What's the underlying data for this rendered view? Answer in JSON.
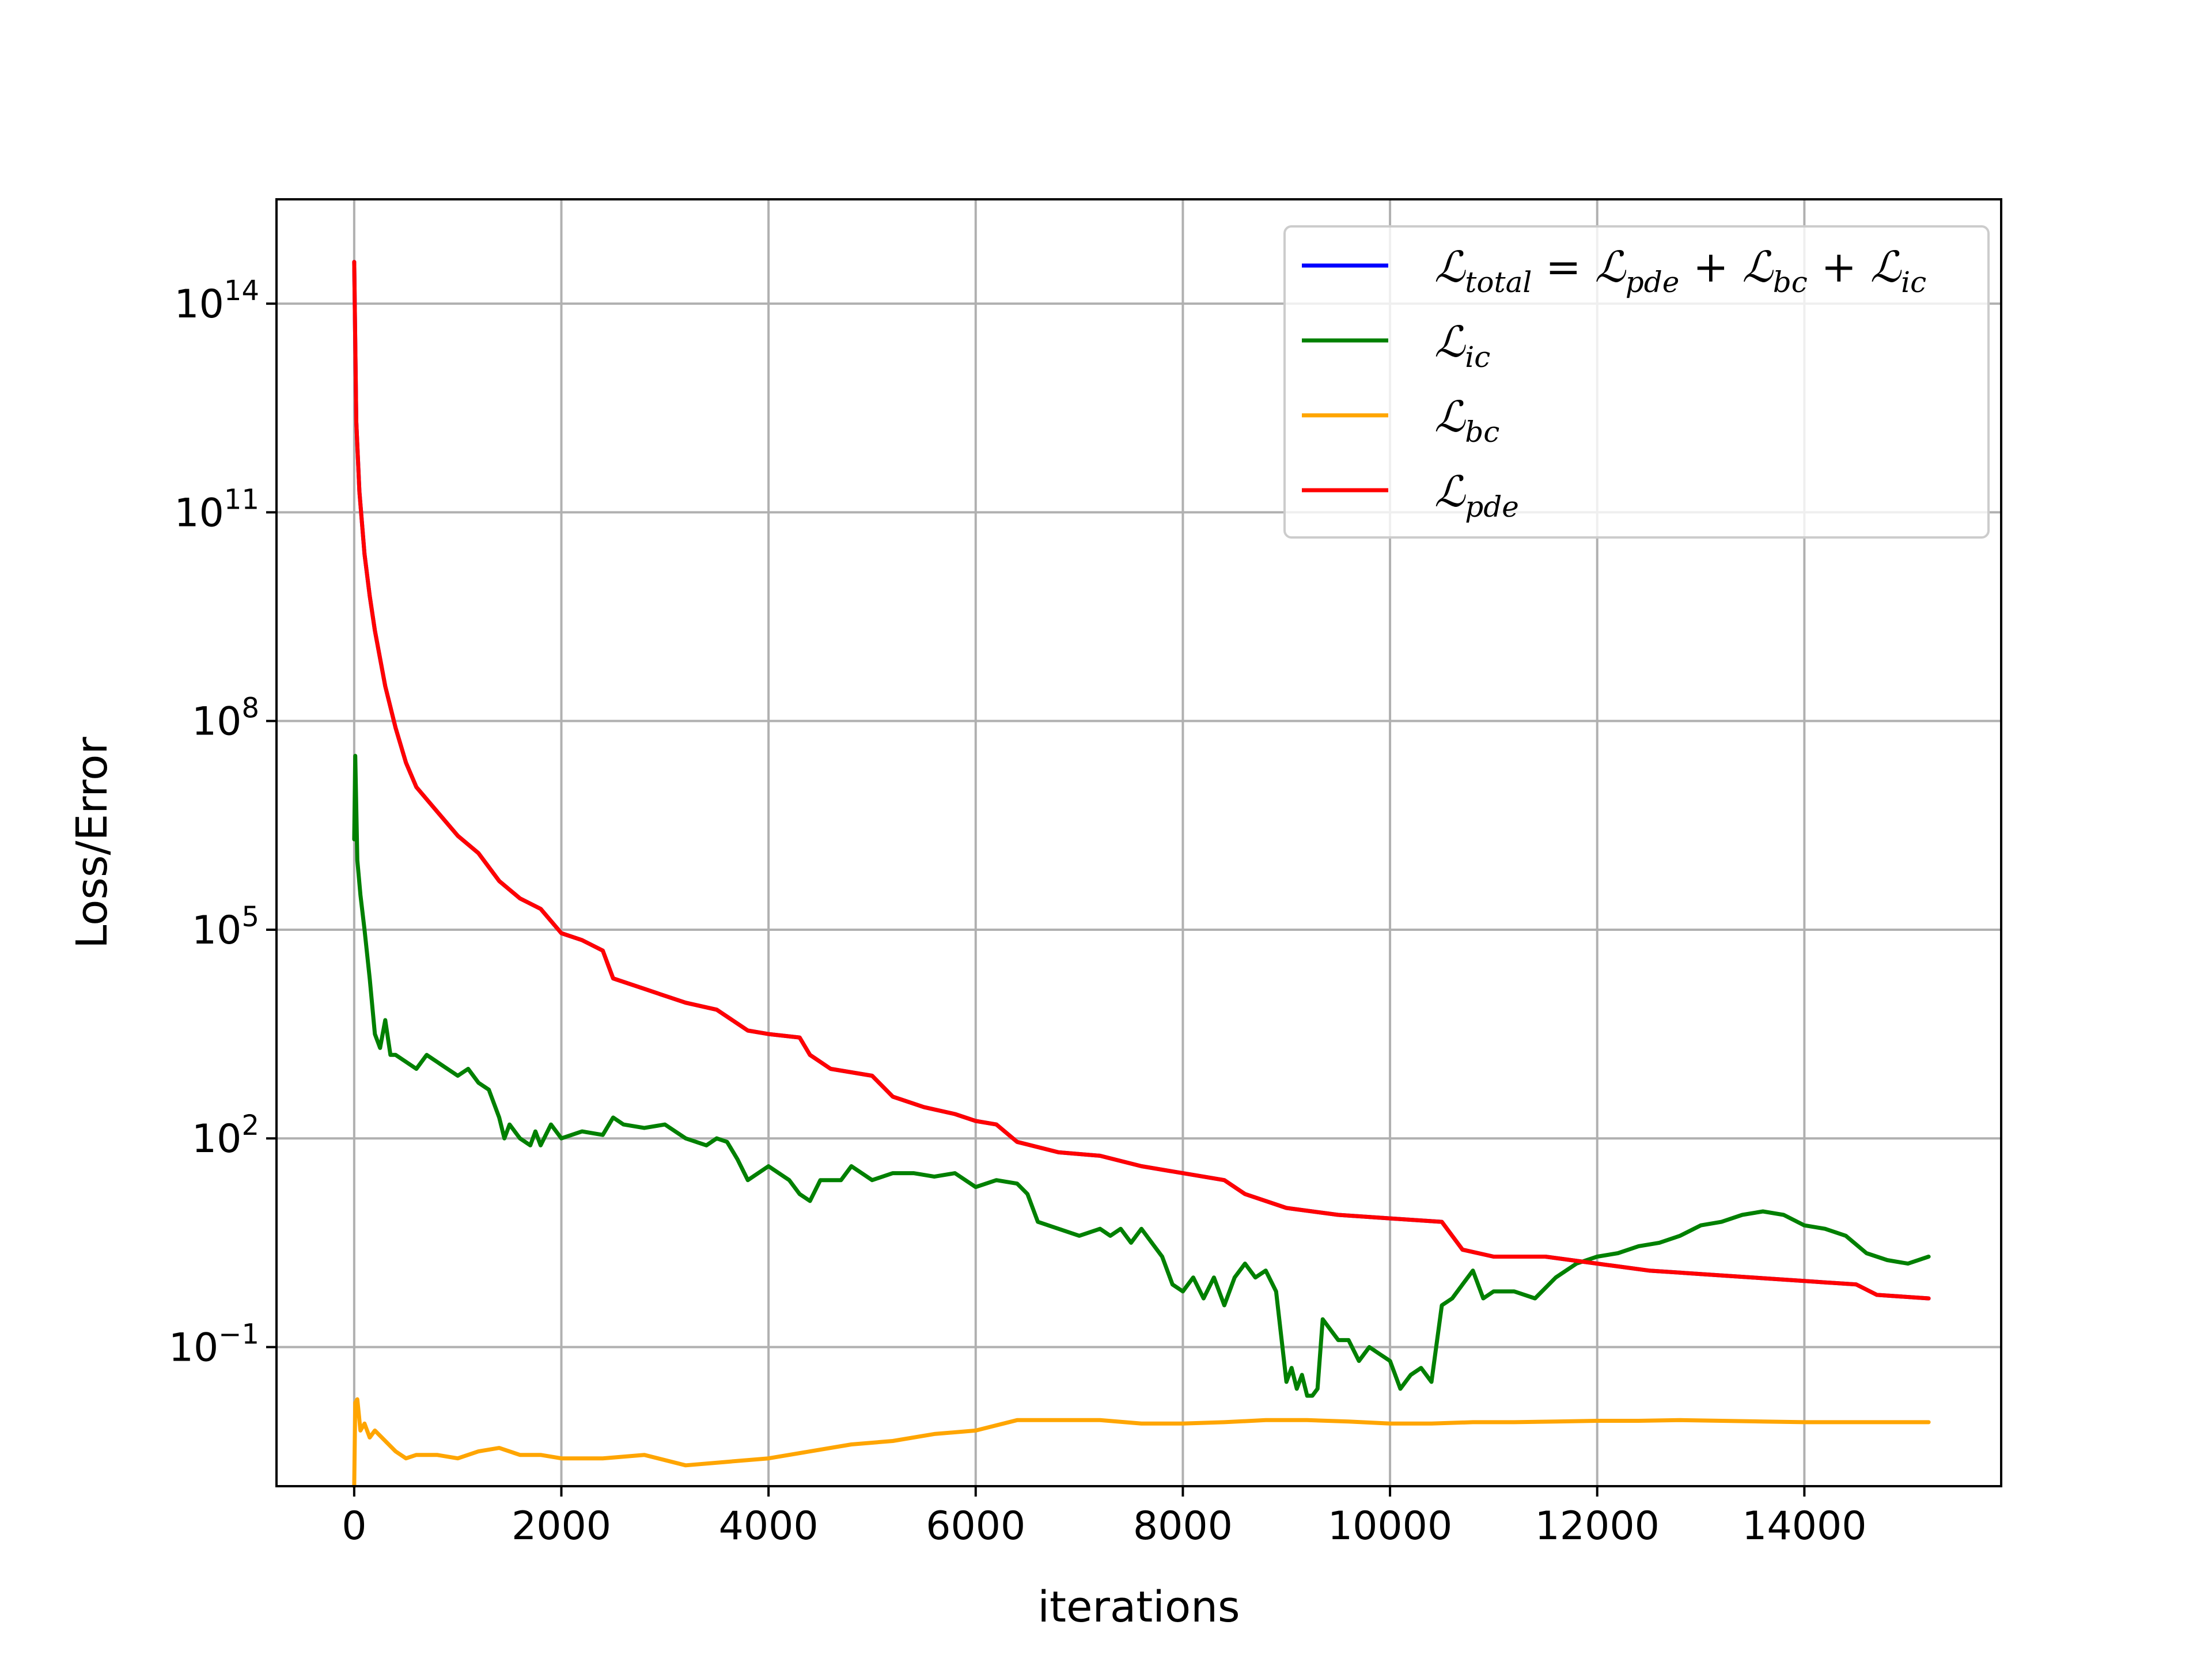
{
  "chart_data": {
    "type": "line",
    "title": "",
    "xlabel": "iterations",
    "ylabel": "Loss/Error",
    "yscale": "log",
    "xlim": [
      -750,
      15900
    ],
    "ylim_log10": [
      -3,
      15.5
    ],
    "grid": true,
    "legend_position": "top-right",
    "x_ticks": [
      0,
      2000,
      4000,
      6000,
      8000,
      10000,
      12000,
      14000
    ],
    "x_tick_labels": [
      "0",
      "2000",
      "4000",
      "6000",
      "8000",
      "10000",
      "12000",
      "14000"
    ],
    "y_ticks_log10": [
      -1,
      2,
      5,
      8,
      11,
      14
    ],
    "y_tick_labels": [
      {
        "base": "10",
        "exp": "−1"
      },
      {
        "base": "10",
        "exp": "2"
      },
      {
        "base": "10",
        "exp": "5"
      },
      {
        "base": "10",
        "exp": "8"
      },
      {
        "base": "10",
        "exp": "11"
      },
      {
        "base": "10",
        "exp": "14"
      }
    ],
    "series": [
      {
        "name": "ℒtotal = ℒpde + ℒbc + ℒic",
        "legend": [
          [
            "ℒ",
            ""
          ],
          [
            "total",
            "sub"
          ],
          [
            " = ℒ",
            ""
          ],
          [
            "pde",
            "sub"
          ],
          [
            " + ℒ",
            ""
          ],
          [
            "bc",
            "sub"
          ],
          [
            " + ℒ",
            ""
          ],
          [
            "ic",
            "sub"
          ]
        ],
        "color": "#0000ff",
        "x": [
          0,
          20,
          50,
          100,
          150,
          200,
          300,
          400,
          500,
          600,
          800,
          1000,
          1200,
          1400,
          1600,
          1800,
          2000,
          2200,
          2400,
          2500,
          2800,
          3000,
          3200,
          3500,
          3800,
          4000,
          4300,
          4400,
          4600,
          5000,
          5200,
          5500,
          5800,
          6000,
          6200,
          6400,
          6800,
          7200,
          7600,
          8000,
          8400,
          8600,
          9000,
          9500,
          10000,
          10500,
          10700,
          11000,
          11500,
          12000,
          12500,
          13000,
          13500,
          14000,
          14500,
          14700,
          15200
        ],
        "log10_y": [
          14.6,
          12.3,
          11.3,
          10.4,
          9.8,
          9.3,
          8.5,
          7.9,
          7.4,
          7.05,
          6.7,
          6.35,
          6.1,
          5.7,
          5.45,
          5.3,
          4.95,
          4.85,
          4.7,
          4.3,
          4.15,
          4.05,
          3.95,
          3.85,
          3.55,
          3.5,
          3.45,
          3.2,
          3.0,
          2.9,
          2.6,
          2.45,
          2.35,
          2.25,
          2.2,
          1.95,
          1.8,
          1.75,
          1.6,
          1.5,
          1.4,
          1.2,
          1.0,
          0.9,
          0.85,
          0.8,
          0.4,
          0.3,
          0.3,
          0.2,
          0.1,
          0.05,
          0.0,
          -0.05,
          -0.1,
          -0.25,
          -0.3
        ]
      },
      {
        "name": "ℒic",
        "legend": [
          [
            " ℒ",
            ""
          ],
          [
            "ic",
            "sub"
          ]
        ],
        "color": "#008000",
        "x": [
          0,
          10,
          30,
          60,
          100,
          150,
          200,
          250,
          300,
          350,
          400,
          500,
          600,
          700,
          800,
          900,
          1000,
          1100,
          1200,
          1300,
          1400,
          1450,
          1500,
          1600,
          1700,
          1750,
          1800,
          1900,
          2000,
          2200,
          2400,
          2500,
          2600,
          2800,
          3000,
          3200,
          3400,
          3500,
          3600,
          3700,
          3800,
          4000,
          4200,
          4300,
          4400,
          4500,
          4700,
          4800,
          5000,
          5200,
          5400,
          5600,
          5800,
          6000,
          6200,
          6400,
          6500,
          6600,
          6800,
          7000,
          7200,
          7300,
          7400,
          7500,
          7600,
          7700,
          7800,
          7900,
          8000,
          8100,
          8200,
          8300,
          8400,
          8500,
          8600,
          8700,
          8800,
          8900,
          9000,
          9050,
          9100,
          9150,
          9200,
          9250,
          9300,
          9350,
          9400,
          9500,
          9600,
          9700,
          9800,
          9900,
          10000,
          10100,
          10200,
          10300,
          10400,
          10500,
          10600,
          10700,
          10800,
          10900,
          11000,
          11200,
          11400,
          11600,
          11800,
          12000,
          12200,
          12400,
          12600,
          12800,
          13000,
          13200,
          13400,
          13600,
          13800,
          14000,
          14200,
          14400,
          14600,
          14800,
          15000,
          15200
        ],
        "log10_y": [
          6.3,
          7.5,
          6.0,
          5.5,
          5.0,
          4.3,
          3.5,
          3.3,
          3.7,
          3.2,
          3.2,
          3.1,
          3.0,
          3.2,
          3.1,
          3.0,
          2.9,
          3.0,
          2.8,
          2.7,
          2.3,
          2.0,
          2.2,
          2.0,
          1.9,
          2.1,
          1.9,
          2.2,
          2.0,
          2.1,
          2.05,
          2.3,
          2.2,
          2.15,
          2.2,
          2.0,
          1.9,
          2.0,
          1.95,
          1.7,
          1.4,
          1.6,
          1.4,
          1.2,
          1.1,
          1.4,
          1.4,
          1.6,
          1.4,
          1.5,
          1.5,
          1.45,
          1.5,
          1.3,
          1.4,
          1.35,
          1.2,
          0.8,
          0.7,
          0.6,
          0.7,
          0.6,
          0.7,
          0.5,
          0.7,
          0.5,
          0.3,
          -0.1,
          -0.2,
          0.0,
          -0.3,
          0.0,
          -0.4,
          0.0,
          0.2,
          0.0,
          0.1,
          -0.2,
          -1.5,
          -1.3,
          -1.6,
          -1.4,
          -1.7,
          -1.7,
          -1.6,
          -0.6,
          -0.7,
          -0.9,
          -0.9,
          -1.2,
          -1.0,
          -1.1,
          -1.2,
          -1.6,
          -1.4,
          -1.3,
          -1.5,
          -0.4,
          -0.3,
          -0.1,
          0.1,
          -0.3,
          -0.2,
          -0.2,
          -0.3,
          0.0,
          0.2,
          0.3,
          0.35,
          0.45,
          0.5,
          0.6,
          0.75,
          0.8,
          0.9,
          0.95,
          0.9,
          0.75,
          0.7,
          0.6,
          0.35,
          0.25,
          0.2,
          0.3
        ]
      },
      {
        "name": "ℒbc",
        "legend": [
          [
            "ℒ",
            ""
          ],
          [
            "bc",
            "sub"
          ]
        ],
        "color": "#ffa500",
        "x": [
          0,
          10,
          30,
          60,
          100,
          150,
          200,
          300,
          400,
          500,
          600,
          800,
          1000,
          1200,
          1400,
          1600,
          1800,
          2000,
          2400,
          2800,
          3200,
          3600,
          4000,
          4400,
          4800,
          5200,
          5600,
          6000,
          6400,
          6800,
          7200,
          7600,
          8000,
          8400,
          8800,
          9200,
          9600,
          10000,
          10400,
          10800,
          11200,
          11600,
          12000,
          12400,
          12800,
          13200,
          13600,
          14000,
          14400,
          14800,
          15200
        ],
        "log10_y": [
          -3.0,
          -1.8,
          -1.75,
          -2.2,
          -2.1,
          -2.3,
          -2.2,
          -2.35,
          -2.5,
          -2.6,
          -2.55,
          -2.55,
          -2.6,
          -2.5,
          -2.45,
          -2.55,
          -2.55,
          -2.6,
          -2.6,
          -2.55,
          -2.7,
          -2.65,
          -2.6,
          -2.5,
          -2.4,
          -2.35,
          -2.25,
          -2.2,
          -2.05,
          -2.05,
          -2.05,
          -2.1,
          -2.1,
          -2.08,
          -2.05,
          -2.05,
          -2.07,
          -2.1,
          -2.1,
          -2.08,
          -2.08,
          -2.07,
          -2.06,
          -2.06,
          -2.05,
          -2.06,
          -2.07,
          -2.08,
          -2.08,
          -2.08,
          -2.08
        ]
      },
      {
        "name": "ℒpde",
        "legend": [
          [
            "ℒ",
            ""
          ],
          [
            "pde",
            "sub"
          ]
        ],
        "color": "#ff0000",
        "x": [
          0,
          20,
          50,
          100,
          150,
          200,
          300,
          400,
          500,
          600,
          800,
          1000,
          1200,
          1400,
          1600,
          1800,
          2000,
          2200,
          2400,
          2500,
          2800,
          3000,
          3200,
          3500,
          3800,
          4000,
          4300,
          4400,
          4600,
          5000,
          5200,
          5500,
          5800,
          6000,
          6200,
          6400,
          6800,
          7200,
          7600,
          8000,
          8400,
          8600,
          9000,
          9500,
          10000,
          10500,
          10700,
          11000,
          11500,
          12000,
          12500,
          13000,
          13500,
          14000,
          14500,
          14700,
          15200
        ],
        "log10_y": [
          14.6,
          12.3,
          11.3,
          10.4,
          9.8,
          9.3,
          8.5,
          7.9,
          7.4,
          7.05,
          6.7,
          6.35,
          6.1,
          5.7,
          5.45,
          5.3,
          4.95,
          4.85,
          4.7,
          4.3,
          4.15,
          4.05,
          3.95,
          3.85,
          3.55,
          3.5,
          3.45,
          3.2,
          3.0,
          2.9,
          2.6,
          2.45,
          2.35,
          2.25,
          2.2,
          1.95,
          1.8,
          1.75,
          1.6,
          1.5,
          1.4,
          1.2,
          1.0,
          0.9,
          0.85,
          0.8,
          0.4,
          0.3,
          0.3,
          0.2,
          0.1,
          0.05,
          0.0,
          -0.05,
          -0.1,
          -0.25,
          -0.3
        ]
      }
    ]
  }
}
